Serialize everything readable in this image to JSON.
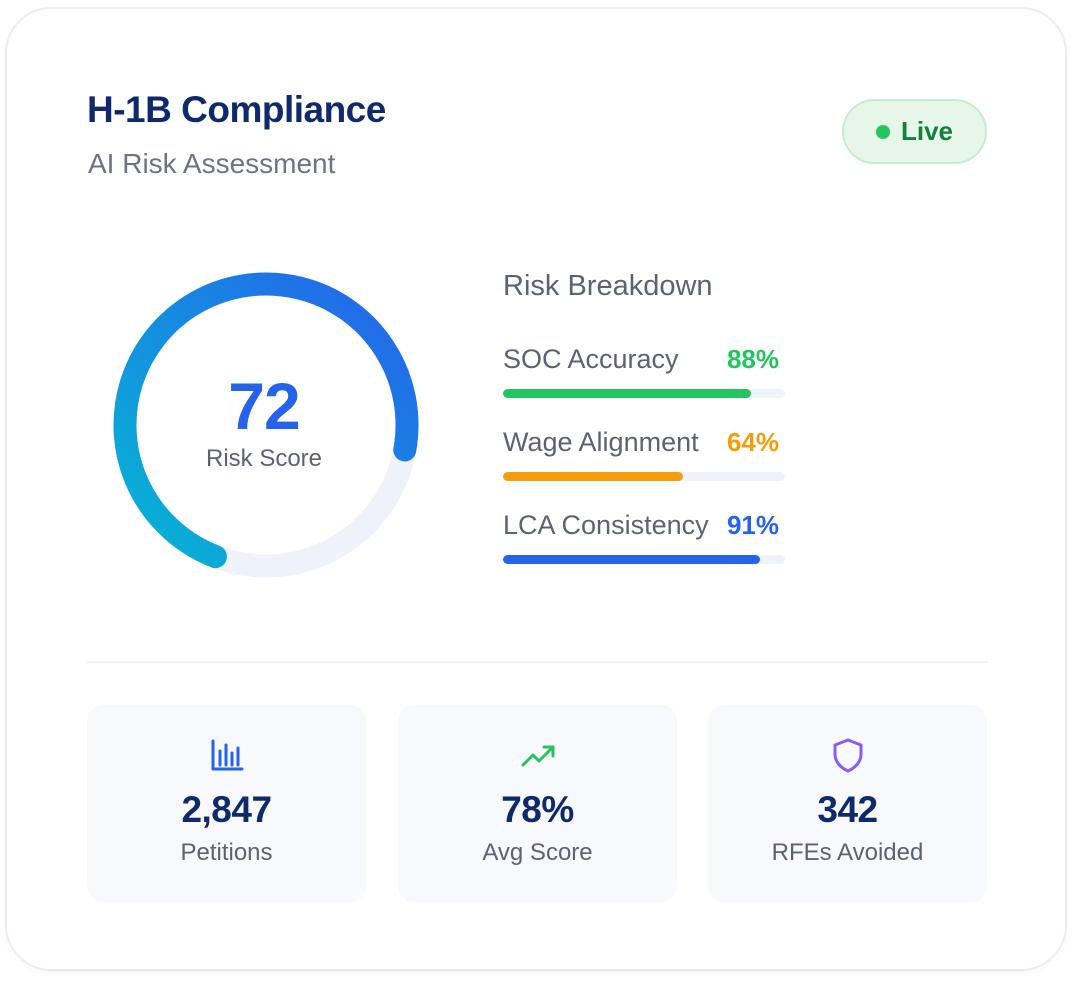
{
  "header": {
    "title": "H-1B Compliance",
    "subtitle": "AI Risk Assessment",
    "status_label": "Live",
    "status_color": "#22c55e"
  },
  "risk_score": {
    "value": "72",
    "label": "Risk Score",
    "progress_percent": 72,
    "colors": {
      "start": "#06b6d4",
      "end": "#2563eb",
      "track": "#eef2fb"
    }
  },
  "breakdown": {
    "title": "Risk Breakdown",
    "metrics": [
      {
        "label": "SOC Accuracy",
        "value": "88%",
        "percent": 88,
        "color": "#22c55e"
      },
      {
        "label": "Wage Alignment",
        "value": "64%",
        "percent": 64,
        "color": "#f59e0b"
      },
      {
        "label": "LCA Consistency",
        "value": "91%",
        "percent": 91,
        "color": "#2563eb"
      }
    ]
  },
  "stats": [
    {
      "icon": "bar-chart-icon",
      "value": "2,847",
      "label": "Petitions",
      "icon_color": "#2563eb"
    },
    {
      "icon": "trending-up-icon",
      "value": "78%",
      "label": "Avg Score",
      "icon_color": "#22c55e"
    },
    {
      "icon": "shield-icon",
      "value": "342",
      "label": "RFEs Avoided",
      "icon_color": "#8b5cf6"
    }
  ]
}
